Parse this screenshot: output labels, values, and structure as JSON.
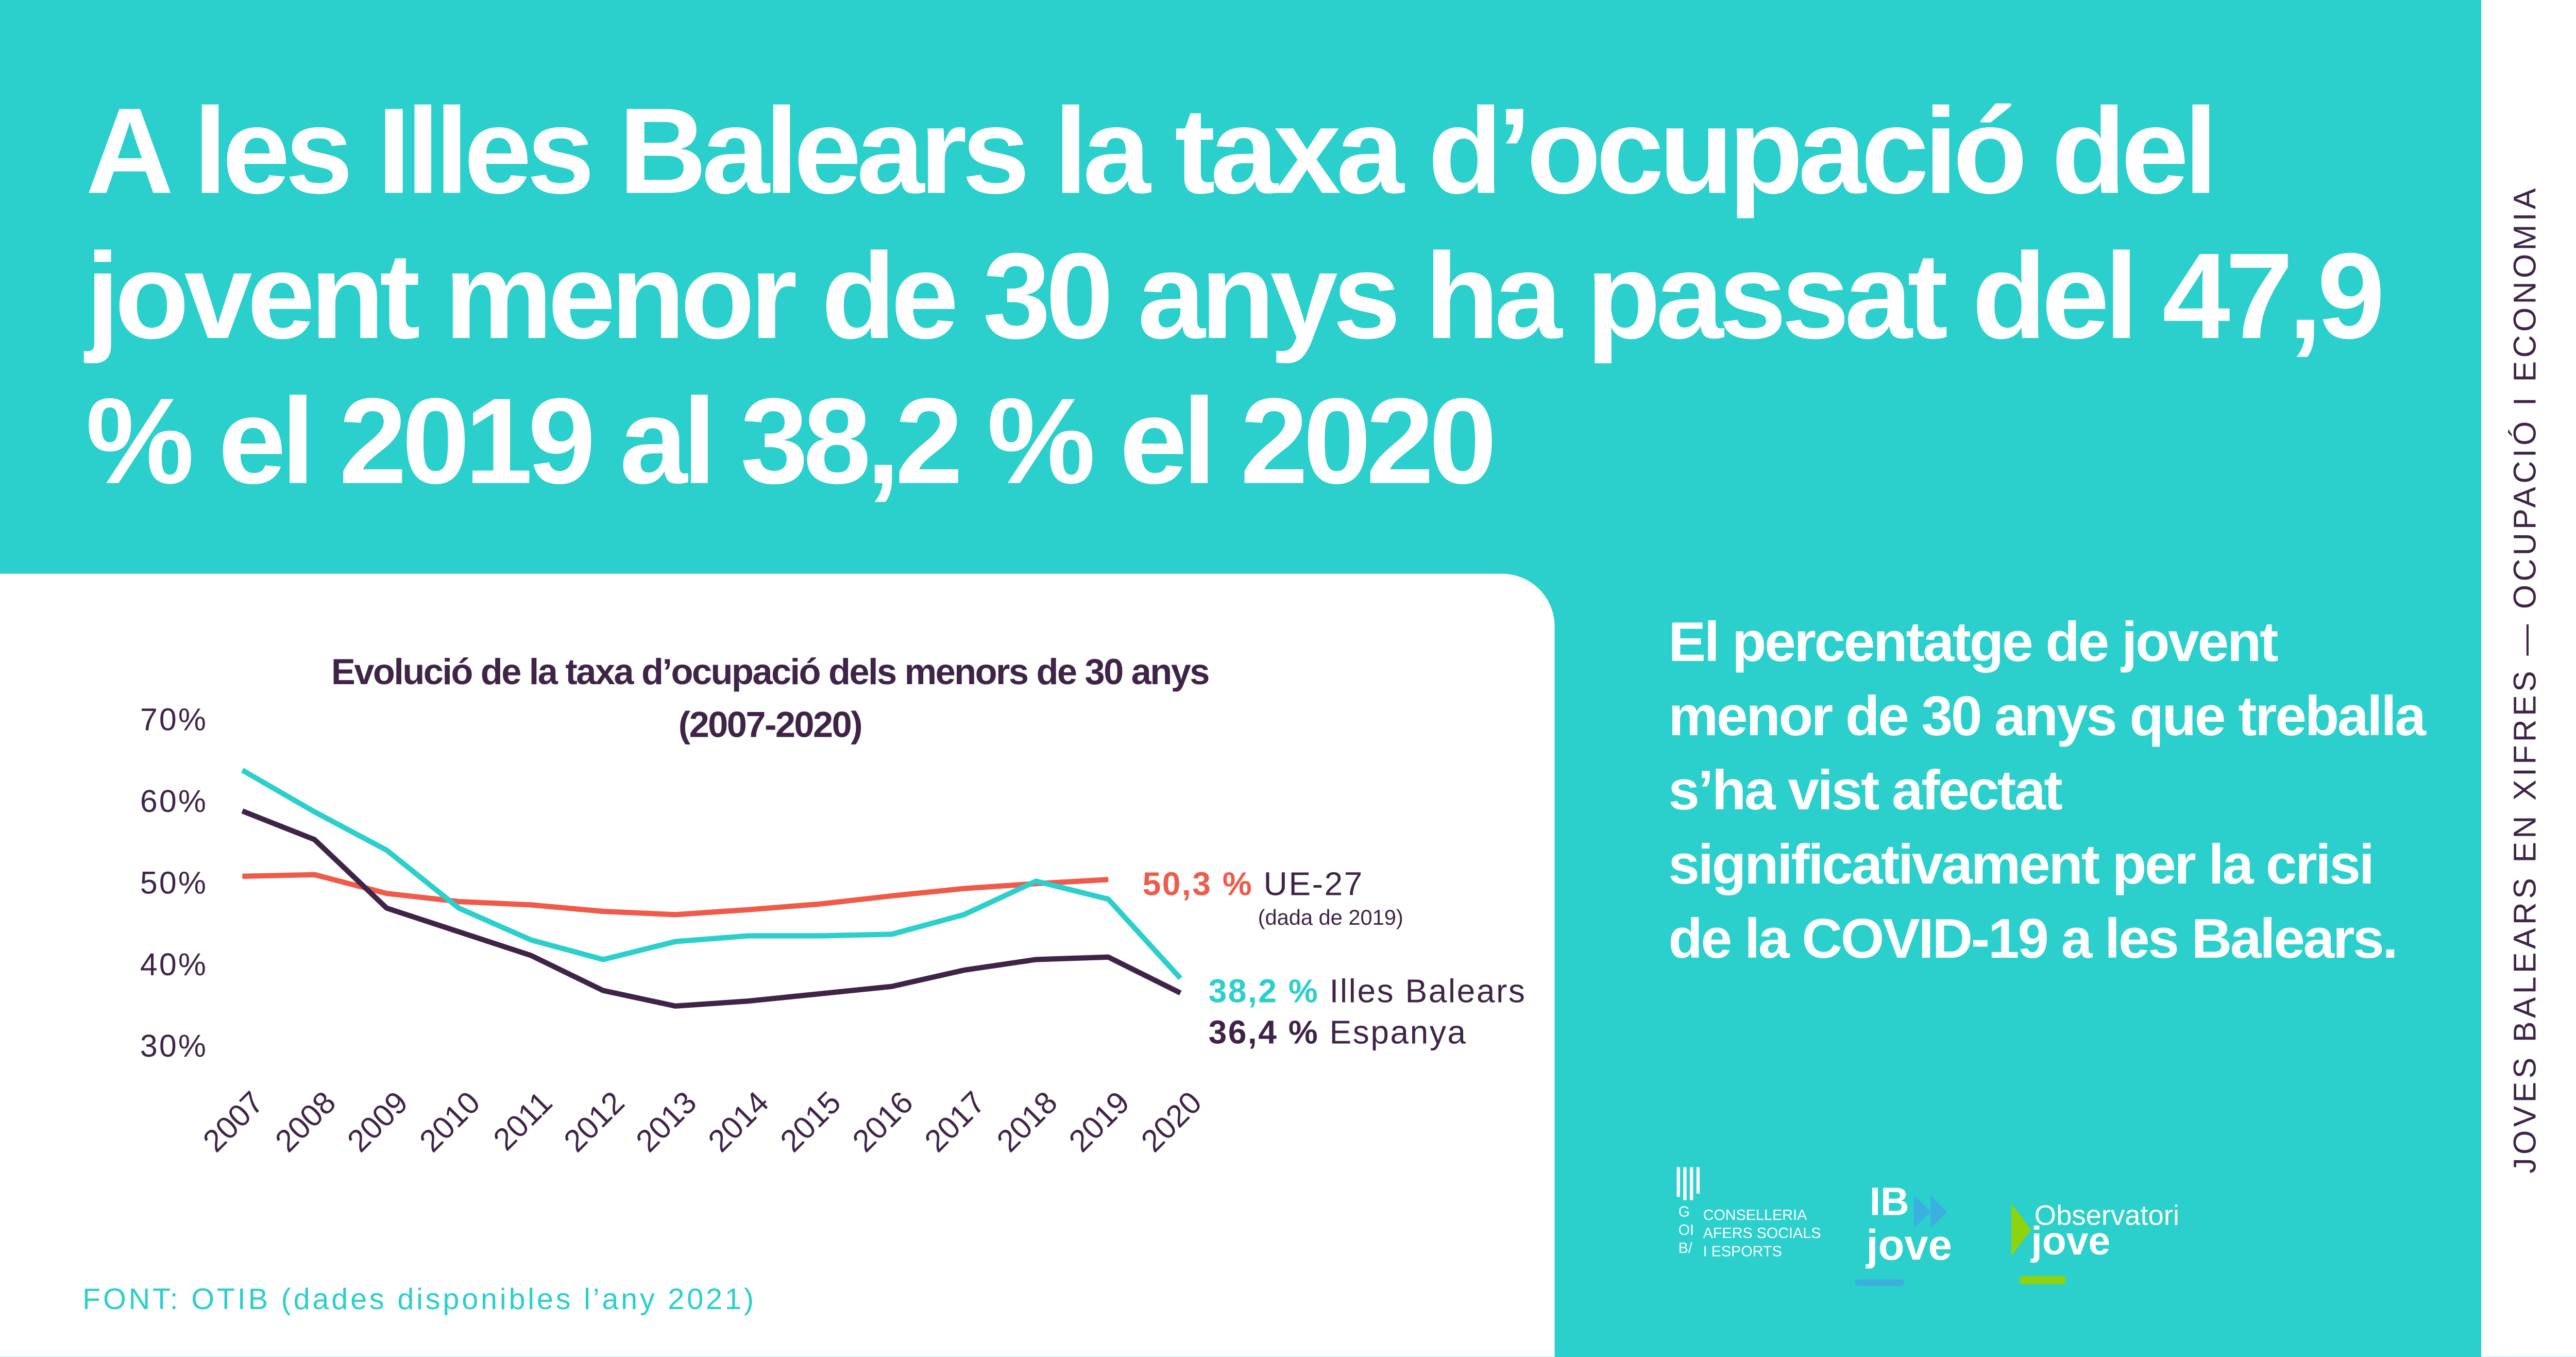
{
  "headline": "A les Illes Balears la taxa d’ocupació del jovent menor de 30 anys ha passat del 47,9 % el 2019 al 38,2 % el 2020",
  "side_label": "JOVES BALEARS EN XIFRES — OCUPACIÓ I ECONOMIA",
  "body_text": "El percentatge de jovent menor de 30 anys que treballa s’ha vist afectat significativament per la crisi de la COVID-19 a les Balears.",
  "source": "FONT: OTIB (dades disponibles l’any 2021)",
  "logos": {
    "goib_letters": "GOIB/",
    "goib_text": [
      "CONSELLERIA",
      "AFERS SOCIALS",
      "I ESPORTS"
    ],
    "ibjove": [
      "IB",
      "jove"
    ],
    "observatori": [
      "Observatori",
      "jove"
    ]
  },
  "colors": {
    "background": "#2BCFCB",
    "ue": "#F05A4A",
    "illes": "#2BCFCB",
    "espanya": "#3F2448"
  },
  "chart_data": {
    "type": "line",
    "title": [
      "Evolució de la taxa d’ocupació dels menors de 30 anys",
      "(2007-2020)"
    ],
    "x": [
      "2007",
      "2008",
      "2009",
      "2010",
      "2011",
      "2012",
      "2013",
      "2014",
      "2015",
      "2016",
      "2017",
      "2018",
      "2019",
      "2020"
    ],
    "yticks": [
      "70%",
      "60%",
      "50%",
      "40%",
      "30%"
    ],
    "ylim": [
      30,
      70
    ],
    "grid": false,
    "series": [
      {
        "name": "UE-27",
        "value_label": "50,3 %",
        "note": "(dada de 2019)",
        "color": "#F05A4A",
        "values": [
          50.7,
          50.9,
          48.6,
          47.6,
          47.2,
          46.4,
          46.0,
          46.6,
          47.3,
          48.3,
          49.2,
          49.8,
          50.3,
          null
        ]
      },
      {
        "name": "Illes Balears",
        "value_label": "38,2 %",
        "color": "#2BCFCB",
        "values": [
          63.7,
          58.6,
          53.9,
          46.8,
          42.9,
          40.5,
          42.7,
          43.4,
          43.4,
          43.6,
          46.0,
          50.1,
          47.9,
          38.2
        ]
      },
      {
        "name": "Espanya",
        "value_label": "36,4 %",
        "color": "#3F2448",
        "values": [
          58.7,
          55.2,
          46.8,
          43.9,
          41.0,
          36.7,
          34.8,
          35.4,
          36.3,
          37.2,
          39.2,
          40.5,
          40.8,
          36.4
        ]
      }
    ]
  }
}
